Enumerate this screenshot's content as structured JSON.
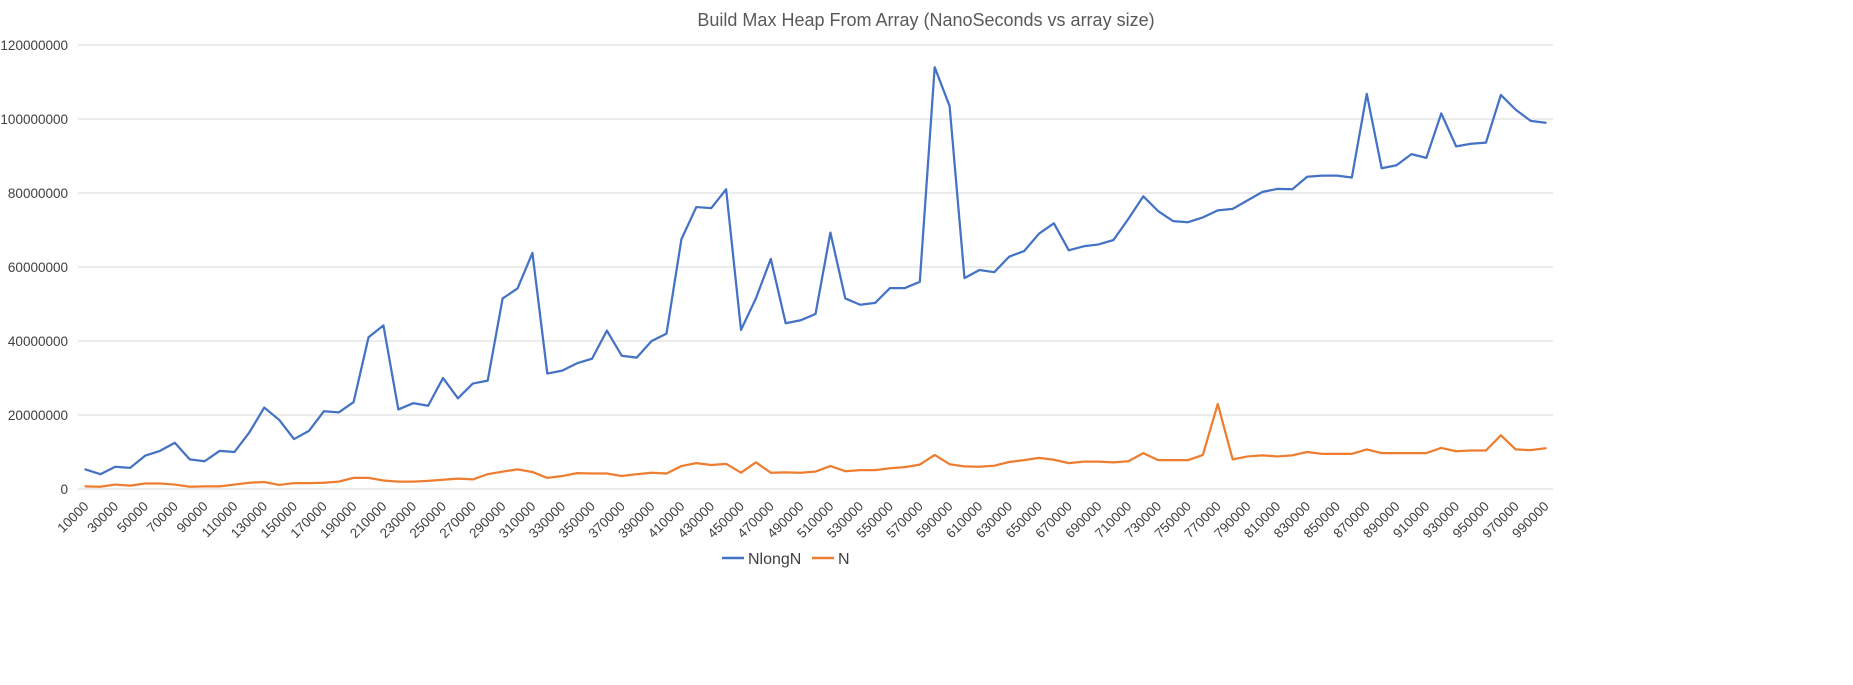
{
  "chart_data": {
    "type": "line",
    "title": "Build Max Heap From Array (NanoSeconds vs array size)",
    "xlabel": "",
    "ylabel": "",
    "ylim": [
      0,
      120000000
    ],
    "yticks": [
      "0",
      "20000000",
      "40000000",
      "60000000",
      "80000000",
      "100000000",
      "120000000"
    ],
    "grid": "horizontal",
    "legend_position": "bottom",
    "x": [
      10000,
      20000,
      30000,
      40000,
      50000,
      60000,
      70000,
      80000,
      90000,
      100000,
      110000,
      120000,
      130000,
      140000,
      150000,
      160000,
      170000,
      180000,
      190000,
      200000,
      210000,
      220000,
      230000,
      240000,
      250000,
      260000,
      270000,
      280000,
      290000,
      300000,
      310000,
      320000,
      330000,
      340000,
      350000,
      360000,
      370000,
      380000,
      390000,
      400000,
      410000,
      420000,
      430000,
      440000,
      450000,
      460000,
      470000,
      480000,
      490000,
      500000,
      510000,
      520000,
      530000,
      540000,
      550000,
      560000,
      570000,
      580000,
      590000,
      600000,
      610000,
      620000,
      630000,
      640000,
      650000,
      660000,
      670000,
      680000,
      690000,
      700000,
      710000,
      720000,
      730000,
      740000,
      750000,
      760000,
      770000,
      780000,
      790000,
      800000,
      810000,
      820000,
      830000,
      840000,
      850000,
      860000,
      870000,
      880000,
      890000,
      900000,
      910000,
      920000,
      930000,
      940000,
      950000,
      960000,
      970000,
      980000,
      990000
    ],
    "x_tick_labels": [
      "10000",
      "30000",
      "50000",
      "70000",
      "90000",
      "110000",
      "130000",
      "150000",
      "170000",
      "190000",
      "210000",
      "230000",
      "250000",
      "270000",
      "290000",
      "310000",
      "330000",
      "350000",
      "370000",
      "390000",
      "410000",
      "430000",
      "450000",
      "470000",
      "490000",
      "510000",
      "530000",
      "550000",
      "570000",
      "590000",
      "610000",
      "630000",
      "650000",
      "670000",
      "690000",
      "710000",
      "730000",
      "750000",
      "770000",
      "790000",
      "810000",
      "830000",
      "850000",
      "870000",
      "890000",
      "910000",
      "930000",
      "950000",
      "970000",
      "990000"
    ],
    "series": [
      {
        "name": "NlongN",
        "color": "#4472c4",
        "values": [
          5300000,
          4000000,
          6000000,
          5700000,
          9000000,
          10300000,
          12500000,
          8000000,
          7500000,
          10300000,
          10000000,
          15300000,
          22000000,
          18700000,
          13500000,
          15700000,
          21000000,
          20700000,
          23500000,
          41000000,
          44200000,
          21500000,
          23200000,
          22500000,
          30000000,
          24500000,
          28500000,
          29300000,
          51500000,
          54200000,
          63800000,
          31200000,
          32000000,
          34000000,
          35200000,
          42800000,
          36000000,
          35500000,
          40000000,
          42000000,
          67500000,
          76200000,
          75900000,
          81000000,
          43000000,
          51500000,
          62200000,
          44800000,
          45600000,
          47300000,
          69300000,
          51500000,
          49800000,
          50300000,
          54300000,
          54300000,
          56000000,
          114000000,
          103500000,
          57000000,
          59200000,
          58600000,
          62800000,
          64300000,
          69000000,
          71800000,
          64500000,
          65600000,
          66100000,
          67300000,
          73000000,
          79100000,
          75100000,
          72400000,
          72100000,
          73400000,
          75300000,
          75700000,
          78000000,
          80300000,
          81100000,
          81000000,
          84400000,
          84700000,
          84700000,
          84200000,
          106800000,
          86700000,
          87500000,
          90500000,
          89500000,
          101500000,
          92600000,
          93300000,
          93600000,
          106500000,
          102500000,
          99500000,
          99000000
        ]
      },
      {
        "name": "N",
        "color": "#ed7d31",
        "values": [
          700000,
          600000,
          1200000,
          900000,
          1500000,
          1500000,
          1200000,
          600000,
          700000,
          700000,
          1200000,
          1700000,
          1900000,
          1100000,
          1600000,
          1600000,
          1700000,
          2000000,
          3000000,
          3000000,
          2300000,
          2000000,
          2000000,
          2200000,
          2500000,
          2800000,
          2600000,
          4000000,
          4700000,
          5300000,
          4600000,
          3000000,
          3500000,
          4300000,
          4200000,
          4200000,
          3500000,
          4000000,
          4400000,
          4200000,
          6200000,
          7000000,
          6500000,
          6800000,
          4400000,
          7200000,
          4400000,
          4500000,
          4400000,
          4700000,
          6200000,
          4800000,
          5100000,
          5100000,
          5600000,
          5900000,
          6600000,
          9200000,
          6700000,
          6100000,
          6000000,
          6300000,
          7300000,
          7800000,
          8400000,
          7900000,
          7000000,
          7400000,
          7400000,
          7200000,
          7500000,
          9700000,
          7800000,
          7800000,
          7800000,
          9200000,
          23000000,
          8000000,
          8800000,
          9100000,
          8800000,
          9100000,
          10000000,
          9500000,
          9500000,
          9500000,
          10700000,
          9700000,
          9700000,
          9700000,
          9700000,
          11100000,
          10200000,
          10400000,
          10400000,
          14500000,
          10700000,
          10500000,
          11000000
        ]
      }
    ]
  }
}
